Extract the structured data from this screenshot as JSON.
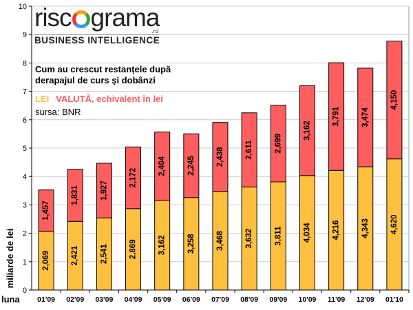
{
  "logo": {
    "name_left": "risc",
    "name_right": "grama",
    "tld": ".ro",
    "tagline": "BUSINESS INTELLIGENCE"
  },
  "caption": {
    "line1": "Cum au crescut restanțele după",
    "line2": "derapajul de curs şi dobânzi"
  },
  "legend": {
    "lei": "LEI",
    "valuta": "VALUTĂ, echivalent în lei"
  },
  "source": "sursa: BNR",
  "colors": {
    "lei": "#ffc040",
    "valuta": "#ff5e5e",
    "grid": "#cccccc",
    "axis": "#000000"
  },
  "chart_data": {
    "type": "bar",
    "stacked": true,
    "categories": [
      "01'09",
      "02'09",
      "03'09",
      "04'09",
      "05'09",
      "06'09",
      "07'09",
      "08'09",
      "09'09",
      "10'09",
      "11'09",
      "12'09",
      "01'10"
    ],
    "series": [
      {
        "name": "LEI",
        "values": [
          2.069,
          2.421,
          2.541,
          2.869,
          3.162,
          3.258,
          3.468,
          3.632,
          3.811,
          4.034,
          4.216,
          4.343,
          4.62
        ]
      },
      {
        "name": "VALUTĂ, echivalent în lei",
        "values": [
          1.457,
          1.831,
          1.927,
          2.172,
          2.404,
          2.245,
          2.438,
          2.611,
          2.699,
          3.162,
          3.791,
          3.474,
          4.15
        ]
      }
    ],
    "data_labels": [
      [
        "2,069",
        "2,421",
        "2,541",
        "2,869",
        "3,162",
        "3,258",
        "3,468",
        "3,632",
        "3,811",
        "4,034",
        "4,216",
        "4,343",
        "4,620"
      ],
      [
        "1,457",
        "1,831",
        "1,927",
        "2,172",
        "2,404",
        "2,245",
        "2,438",
        "2,611",
        "2,699",
        "3,162",
        "3,791",
        "3,474",
        "4,150"
      ]
    ],
    "xlabel": "luna",
    "ylabel": "miliarde de lei",
    "ylim": [
      0,
      10
    ],
    "yticks": [
      0,
      1,
      2,
      3,
      4,
      5,
      6,
      7,
      8,
      9,
      10
    ],
    "grid": true
  }
}
